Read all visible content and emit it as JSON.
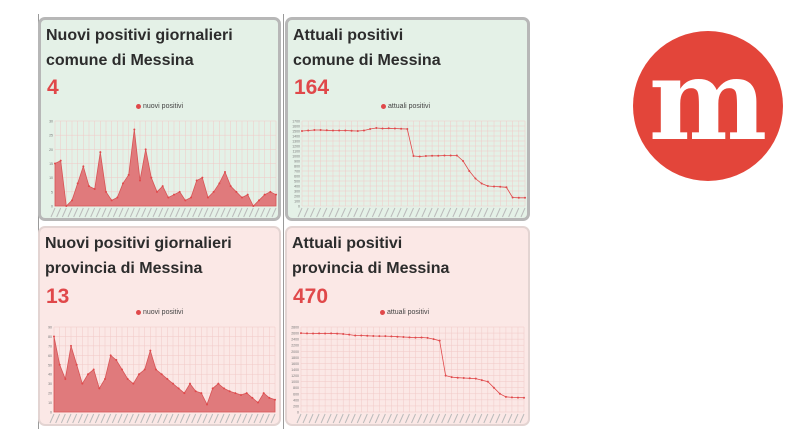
{
  "cards": {
    "comune_daily": {
      "title_line1": "Nuovi positivi giornalieri",
      "title_line2": "comune di Messina",
      "value": "4",
      "legend": "nuovi positivi"
    },
    "comune_current": {
      "title_line1": "Attuali positivi",
      "title_line2": "comune di Messina",
      "value": "164",
      "legend": "attuali positivi"
    },
    "provincia_daily": {
      "title_line1": "Nuovi positivi giornalieri",
      "title_line2": "provincia di Messina",
      "value": "13",
      "legend": "nuovi positivi"
    },
    "provincia_current": {
      "title_line1": "Attuali positivi",
      "title_line2": "provincia di Messina",
      "value": "470",
      "legend": "attuali positivi"
    }
  },
  "logo": {
    "letter": "m"
  },
  "colors": {
    "accent": "#e0484a",
    "area_fill": "#e07a7c",
    "green_bg": "#e4f1e7",
    "pink_bg": "#fbe8e6",
    "logo_red": "#e3453a"
  },
  "chart_data": [
    {
      "type": "area",
      "series": [
        {
          "name": "nuovi positivi",
          "values": [
            15,
            16,
            0,
            2,
            8,
            14,
            7,
            6,
            19,
            5,
            2,
            3,
            8,
            11,
            27,
            9,
            20,
            10,
            5,
            7,
            3,
            4,
            5,
            2,
            3,
            9,
            10,
            3,
            5,
            8,
            12,
            7,
            5,
            3,
            4,
            0,
            2,
            4,
            5,
            4
          ]
        }
      ],
      "ylim": [
        0,
        30
      ],
      "yticks": [
        0,
        5,
        10,
        15,
        20,
        25,
        30
      ],
      "grid": true,
      "legend_position": "top"
    },
    {
      "type": "line",
      "series": [
        {
          "name": "attuali positivi",
          "values": [
            1500,
            1510,
            1520,
            1520,
            1515,
            1510,
            1510,
            1510,
            1505,
            1500,
            1510,
            1540,
            1560,
            1550,
            1555,
            1550,
            1545,
            1540,
            1000,
            990,
            1000,
            1005,
            1005,
            1010,
            1010,
            1010,
            900,
            700,
            550,
            450,
            400,
            390,
            385,
            375,
            170,
            165,
            164
          ]
        }
      ],
      "ylim": [
        0,
        1700
      ],
      "yticks": [
        0,
        100,
        200,
        300,
        400,
        500,
        600,
        700,
        800,
        900,
        1000,
        1100,
        1200,
        1300,
        1400,
        1500,
        1600,
        1700
      ],
      "grid": true,
      "legend_position": "top"
    },
    {
      "type": "area",
      "series": [
        {
          "name": "nuovi positivi",
          "values": [
            80,
            50,
            35,
            70,
            50,
            30,
            40,
            45,
            25,
            35,
            60,
            55,
            45,
            35,
            30,
            40,
            45,
            65,
            45,
            40,
            35,
            30,
            25,
            20,
            30,
            22,
            20,
            8,
            25,
            30,
            25,
            22,
            20,
            18,
            20,
            15,
            10,
            20,
            15,
            13
          ]
        }
      ],
      "ylim": [
        0,
        90
      ],
      "yticks": [
        0,
        10,
        20,
        30,
        40,
        50,
        60,
        70,
        80,
        90
      ],
      "grid": true,
      "legend_position": "top"
    },
    {
      "type": "line",
      "series": [
        {
          "name": "attuali positivi",
          "values": [
            2600,
            2590,
            2585,
            2590,
            2585,
            2590,
            2580,
            2570,
            2550,
            2520,
            2520,
            2510,
            2505,
            2500,
            2500,
            2490,
            2480,
            2470,
            2460,
            2450,
            2455,
            2440,
            2400,
            2350,
            1200,
            1150,
            1130,
            1120,
            1110,
            1100,
            1050,
            1000,
            800,
            600,
            500,
            480,
            475,
            470
          ]
        }
      ],
      "ylim": [
        0,
        2800
      ],
      "yticks": [
        0,
        200,
        400,
        600,
        800,
        1000,
        1200,
        1400,
        1600,
        1800,
        2000,
        2200,
        2400,
        2600,
        2800
      ],
      "grid": true,
      "legend_position": "top"
    }
  ]
}
